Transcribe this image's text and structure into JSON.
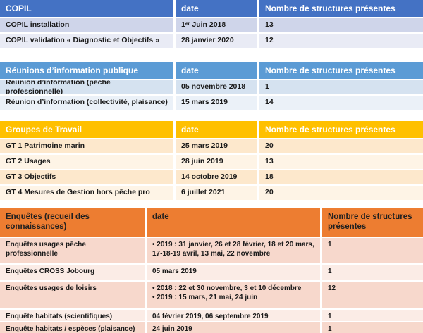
{
  "page": {
    "background": "#FFFFFF",
    "text_color": "#1A1A1A"
  },
  "tables": [
    {
      "name": "copil",
      "header_bg": "#4472C4",
      "header_text_color": "#FFFFFF",
      "band1": "#CFD5EA",
      "band2": "#E9EBF5",
      "headers": [
        "COPIL",
        "date",
        "Nombre de structures présentes"
      ],
      "rows": [
        [
          "COPIL installation",
          "1ᵉʳ Juin 2018",
          "13"
        ],
        [
          "COPIL validation « Diagnostic et Objectifs »",
          "28 janvier 2020",
          "12"
        ]
      ]
    },
    {
      "name": "reunions-information-publique",
      "header_bg": "#5B9BD5",
      "header_text_color": "#FFFFFF",
      "band1": "#D5E2F0",
      "band2": "#EBF1F8",
      "headers": [
        "Réunions d’information publique",
        "date",
        "Nombre de structures présentes"
      ],
      "rows": [
        [
          "Réunion d’information (pêche professionnelle)",
          "05 novembre 2018",
          "1"
        ],
        [
          "Réunion d’information (collectivité, plaisance)",
          "15 mars 2019",
          "14"
        ]
      ]
    },
    {
      "name": "groupes-de-travail",
      "header_bg": "#FFC000",
      "header_text_color": "#FFFFFF",
      "band1": "#FDE8CC",
      "band2": "#FEF4E6",
      "headers": [
        "Groupes de Travail",
        "date",
        "Nombre de structures présentes"
      ],
      "rows": [
        [
          "GT 1 Patrimoine marin",
          "25 mars 2019",
          "20"
        ],
        [
          "GT 2 Usages",
          "28 juin 2019",
          "13"
        ],
        [
          "GT 3 Objectifs",
          "14 octobre 2019",
          "18"
        ],
        [
          "GT 4 Mesures de Gestion hors pêche pro",
          "6 juillet 2021",
          "20"
        ]
      ]
    },
    {
      "name": "enquetes",
      "header_bg": "#ED7D31",
      "header_text_color": "#202020",
      "band1": "#F7D8CC",
      "band2": "#FBECE6",
      "headers": [
        "Enquêtes (recueil des connaissances)",
        "date",
        "Nombre de structures présentes"
      ],
      "rows": [
        [
          "Enquêtes usages pêche professionnelle",
          "•   2019 : 31 janvier, 26 et 28 février, 18 et 20 mars, 17-18-19 avril, 13 mai, 22 novembre",
          "1"
        ],
        [
          "Enquêtes CROSS Jobourg",
          "05 mars 2019",
          "1"
        ],
        [
          "Enquêtes usages de loisirs",
          "•   2018 : 22 et 30 novembre, 3 et 10 décembre\n•   2019 : 15 mars, 21 mai, 24 juin",
          "12"
        ],
        [
          "Enquête habitats (scientifiques)",
          "04 février 2019, 06 septembre 2019",
          "1"
        ],
        [
          "Enquête habitats / espèces (plaisance)",
          "24 juin 2019",
          "1"
        ]
      ]
    }
  ]
}
